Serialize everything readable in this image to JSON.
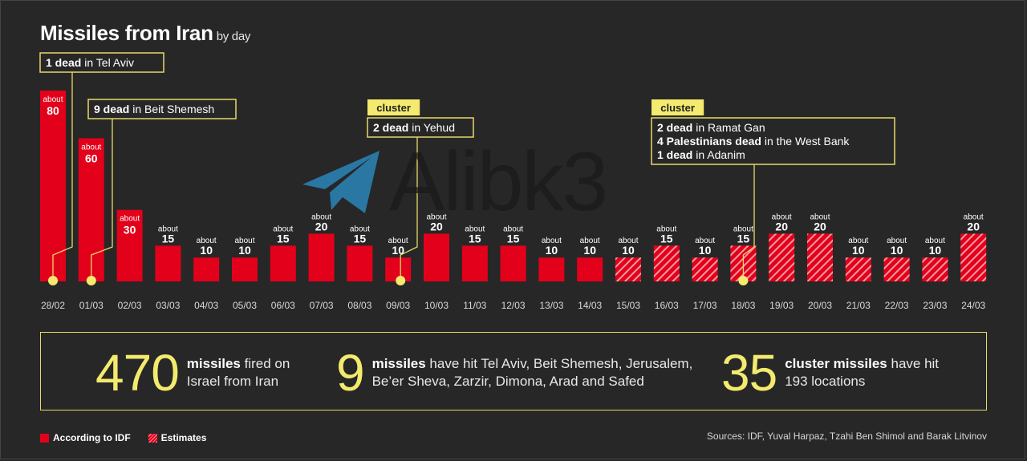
{
  "header": {
    "title": "Missiles from Iran",
    "subtitle": "by day"
  },
  "chart_data": {
    "type": "bar",
    "title": "Missiles from Iran",
    "subtitle": "by day",
    "categories": [
      "28/02",
      "01/03",
      "02/03",
      "03/03",
      "04/03",
      "05/03",
      "06/03",
      "07/03",
      "08/03",
      "09/03",
      "10/03",
      "11/03",
      "12/03",
      "13/03",
      "14/03",
      "15/03",
      "16/03",
      "17/03",
      "18/03",
      "19/03",
      "20/03",
      "21/03",
      "22/03",
      "23/03",
      "24/03"
    ],
    "values": [
      80,
      60,
      30,
      15,
      10,
      10,
      15,
      20,
      15,
      10,
      20,
      15,
      15,
      10,
      10,
      10,
      15,
      10,
      15,
      20,
      20,
      10,
      10,
      10,
      20
    ],
    "value_prefix": "about",
    "estimated": [
      false,
      false,
      false,
      false,
      false,
      false,
      false,
      false,
      false,
      false,
      false,
      false,
      false,
      false,
      false,
      true,
      true,
      true,
      true,
      true,
      true,
      true,
      true,
      true,
      true
    ],
    "ylim": [
      0,
      82
    ],
    "grid": false,
    "annotations": [
      {
        "index": 0,
        "lines": [
          {
            "bold": "1 dead",
            "text": " in Tel Aviv"
          }
        ]
      },
      {
        "index": 1,
        "lines": [
          {
            "bold": "9 dead",
            "text": " in Beit Shemesh"
          }
        ]
      },
      {
        "index": 9,
        "tag": "cluster",
        "lines": [
          {
            "bold": "2 dead",
            "text": " in Yehud"
          }
        ]
      },
      {
        "index": 18,
        "tag": "cluster",
        "lines": [
          {
            "bold": "2 dead",
            "text": " in Ramat Gan"
          },
          {
            "bold": "4 Palestinians dead",
            "text": " in the West Bank"
          },
          {
            "bold": "1 dead",
            "text": " in Adanim"
          }
        ]
      }
    ],
    "legend": [
      {
        "label": "According to IDF",
        "style": "solid"
      },
      {
        "label": "Estimates",
        "style": "hatched"
      }
    ],
    "colors": {
      "bar": "#e3001b",
      "hatch_light": "#f59aa3",
      "accent": "#f3ea6e",
      "annotation_border": "#e9d86a",
      "background": "#272727"
    }
  },
  "stats": [
    {
      "number": "470",
      "bold": "missiles",
      "text1": " fired on",
      "line2": "Israel from Iran"
    },
    {
      "number": "9",
      "bold": "missiles",
      "text1": " have hit Tel Aviv, Beit Shemesh, Jerusalem,",
      "line2": "Be’er Sheva, Zarzir, Dimona, Arad and Safed"
    },
    {
      "number": "35",
      "bold": "cluster missiles",
      "text1": " have hit",
      "line2": "193 locations"
    }
  ],
  "legend": {
    "idf_label": "According to IDF",
    "estimates_label": "Estimates"
  },
  "sources": "Sources: IDF, Yuval Harpaz, Tzahi Ben Shimol and Barak Litvinov",
  "watermark": {
    "text": "Alibk3",
    "icon": "telegram-icon"
  }
}
